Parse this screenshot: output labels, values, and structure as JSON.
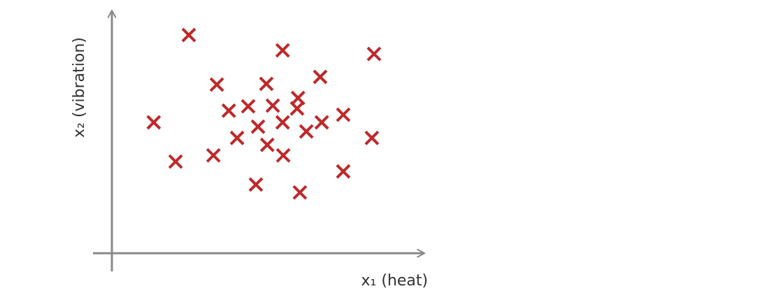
{
  "chart_data": {
    "type": "scatter",
    "x_label": "x₁ (heat)",
    "y_label": "x₂ (vibration)",
    "color": "#c0282a",
    "xlim": [
      0,
      10
    ],
    "ylim": [
      0,
      10
    ],
    "x": [
      2.5,
      5.55,
      8.52,
      3.41,
      5.02,
      6.77,
      6.05,
      3.8,
      4.43,
      5.23,
      6.02,
      1.36,
      5.55,
      4.75,
      6.82,
      7.52,
      6.32,
      4.07,
      5.05,
      8.45,
      3.3,
      5.57,
      2.07,
      7.52,
      4.68,
      6.11
    ],
    "y": [
      9.12,
      8.48,
      8.33,
      7.05,
      7.08,
      7.37,
      6.49,
      5.96,
      6.14,
      6.17,
      6.05,
      5.47,
      5.47,
      5.29,
      5.47,
      5.79,
      5.09,
      4.82,
      4.53,
      4.82,
      4.09,
      4.09,
      3.83,
      3.42,
      2.87,
      2.54
    ]
  }
}
